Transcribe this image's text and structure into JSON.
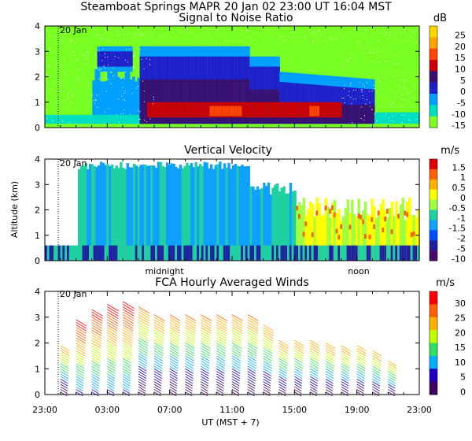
{
  "header": {
    "title_line": "Steamboat Springs  MAPR 20 Jan 02  23:00 UT  16:04  MST"
  },
  "chart_data": [
    {
      "type": "heatmap",
      "title": "Signal to Noise Ratio",
      "unit": "dB",
      "ylabel": "",
      "date_label": "20 Jan",
      "y_ticks": [
        "0",
        "1",
        "2",
        "3",
        "4"
      ],
      "ylim": [
        0,
        4
      ],
      "colorbar": {
        "labels": [
          "25",
          "20",
          "15",
          "10",
          "5",
          "0",
          "-5",
          "-10",
          "-15"
        ],
        "colors": [
          "#ffd600",
          "#ffa500",
          "#ff4500",
          "#cc0000",
          "#3a1070",
          "#2020c8",
          "#00a0ff",
          "#00e0c0",
          "#80ff20"
        ]
      }
    },
    {
      "type": "heatmap",
      "title": "Vertical Velocity",
      "unit": "m/s",
      "ylabel": "Altitude (km)",
      "date_label": "20 Jan",
      "y_ticks": [
        "0",
        "1",
        "2",
        "3",
        "4"
      ],
      "ylim": [
        0,
        4
      ],
      "annotations": [
        "midnight",
        "noon"
      ],
      "colorbar": {
        "labels": [
          "1.5",
          "1",
          "0.5",
          "0",
          "-0.5",
          "-1",
          "-1.5",
          "-2",
          "-5",
          "-10"
        ],
        "colors": [
          "#e00000",
          "#ff6000",
          "#ffb000",
          "#ffff00",
          "#a0ff40",
          "#20d0a0",
          "#10a0ff",
          "#0050ff",
          "#2020a0",
          "#4a0a6a"
        ]
      }
    },
    {
      "type": "scatter",
      "title": "FCA Hourly Averaged Winds",
      "unit": "m/s",
      "ylabel": "",
      "date_label": "20 Jan",
      "y_ticks": [
        "0",
        "1",
        "2",
        "3",
        "4"
      ],
      "ylim": [
        0,
        4
      ],
      "xlabel": "UT  (MST + 7)",
      "x_ticks": [
        "23:00",
        "03:00",
        "07:00",
        "11:00",
        "15:00",
        "19:00",
        "23:00"
      ],
      "xlim_hours": [
        0,
        24
      ],
      "colorbar": {
        "labels": [
          "30",
          "25",
          "20",
          "15",
          "10",
          "5",
          "0"
        ],
        "colors": [
          "#ff0000",
          "#ff6000",
          "#ffb000",
          "#c0ff00",
          "#30e060",
          "#00b0ff",
          "#2000c0",
          "#400060"
        ]
      },
      "profiles": [
        {
          "hour": 1.0,
          "top_km": 2.0
        },
        {
          "hour": 2.0,
          "top_km": 3.0
        },
        {
          "hour": 3.0,
          "top_km": 3.4
        },
        {
          "hour": 4.0,
          "top_km": 3.6
        },
        {
          "hour": 5.0,
          "top_km": 3.7
        },
        {
          "hour": 6.0,
          "top_km": 3.5
        },
        {
          "hour": 7.0,
          "top_km": 3.2
        },
        {
          "hour": 8.0,
          "top_km": 3.2
        },
        {
          "hour": 9.0,
          "top_km": 3.2
        },
        {
          "hour": 10.0,
          "top_km": 3.2
        },
        {
          "hour": 11.0,
          "top_km": 3.2
        },
        {
          "hour": 12.0,
          "top_km": 3.2
        },
        {
          "hour": 13.0,
          "top_km": 3.2
        },
        {
          "hour": 14.0,
          "top_km": 2.8
        },
        {
          "hour": 15.0,
          "top_km": 2.2
        },
        {
          "hour": 16.0,
          "top_km": 2.2
        },
        {
          "hour": 17.0,
          "top_km": 2.2
        },
        {
          "hour": 18.0,
          "top_km": 2.1
        },
        {
          "hour": 19.0,
          "top_km": 2.0
        },
        {
          "hour": 20.0,
          "top_km": 2.0
        },
        {
          "hour": 21.0,
          "top_km": 1.8
        },
        {
          "hour": 22.0,
          "top_km": 1.4
        }
      ]
    }
  ]
}
